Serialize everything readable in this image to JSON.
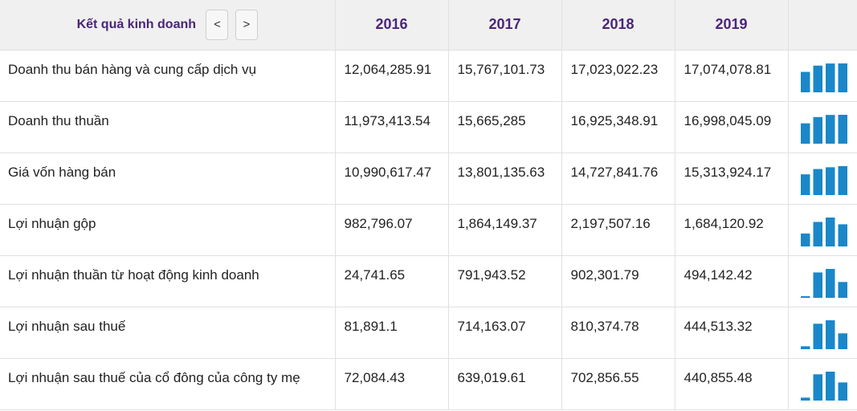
{
  "header": {
    "title": "Kết quả kinh doanh",
    "prev_label": "<",
    "next_label": ">",
    "years": [
      "2016",
      "2017",
      "2018",
      "2019"
    ]
  },
  "colors": {
    "accent": "#4a2578",
    "bar": "#1a87c9",
    "header_bg": "#f0f0f0",
    "grid": "#e1e1e1"
  },
  "rows": [
    {
      "label": "Doanh thu bán hàng và cung cấp dịch vụ",
      "values": [
        "12,064,285.91",
        "15,767,101.73",
        "17,023,022.23",
        "17,074,078.81"
      ],
      "numeric": [
        12064285.91,
        15767101.73,
        17023022.23,
        17074078.81
      ]
    },
    {
      "label": "Doanh thu thuần",
      "values": [
        "11,973,413.54",
        "15,665,285",
        "16,925,348.91",
        "16,998,045.09"
      ],
      "numeric": [
        11973413.54,
        15665285,
        16925348.91,
        16998045.09
      ]
    },
    {
      "label": "Giá vốn hàng bán",
      "values": [
        "10,990,617.47",
        "13,801,135.63",
        "14,727,841.76",
        "15,313,924.17"
      ],
      "numeric": [
        10990617.47,
        13801135.63,
        14727841.76,
        15313924.17
      ]
    },
    {
      "label": "Lợi nhuận gộp",
      "values": [
        "982,796.07",
        "1,864,149.37",
        "2,197,507.16",
        "1,684,120.92"
      ],
      "numeric": [
        982796.07,
        1864149.37,
        2197507.16,
        1684120.92
      ]
    },
    {
      "label": "Lợi nhuận thuần từ hoạt động kinh doanh",
      "values": [
        "24,741.65",
        "791,943.52",
        "902,301.79",
        "494,142.42"
      ],
      "numeric": [
        24741.65,
        791943.52,
        902301.79,
        494142.42
      ]
    },
    {
      "label": "Lợi nhuận sau thuế",
      "values": [
        "81,891.1",
        "714,163.07",
        "810,374.78",
        "444,513.32"
      ],
      "numeric": [
        81891.1,
        714163.07,
        810374.78,
        444513.32
      ]
    },
    {
      "label": "Lợi nhuận sau thuế của cổ đông của công ty mẹ",
      "values": [
        "72,084.43",
        "639,019.61",
        "702,856.55",
        "440,855.48"
      ],
      "numeric": [
        72084.43,
        639019.61,
        702856.55,
        440855.48
      ]
    }
  ]
}
